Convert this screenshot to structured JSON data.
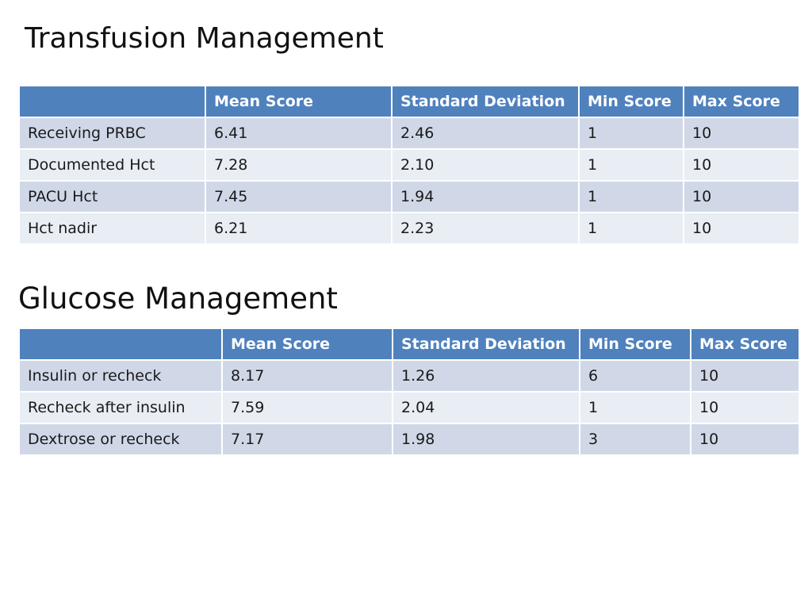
{
  "colors": {
    "header_bg": "#4f81bd",
    "header_text": "#ffffff",
    "row_band_1": "#d0d8e8",
    "row_band_2": "#e9edf4"
  },
  "transfusion": {
    "title": "Transfusion Management",
    "headers": [
      "",
      "Mean Score",
      "Standard Deviation",
      "Min Score",
      "Max Score"
    ],
    "rows": [
      [
        "Receiving PRBC",
        "6.41",
        "2.46",
        "1",
        "10"
      ],
      [
        "Documented Hct",
        "7.28",
        "2.10",
        "1",
        "10"
      ],
      [
        "PACU Hct",
        "7.45",
        "1.94",
        "1",
        "10"
      ],
      [
        "Hct nadir",
        "6.21",
        "2.23",
        "1",
        "10"
      ]
    ]
  },
  "glucose": {
    "title": "Glucose Management",
    "headers": [
      "",
      "Mean Score",
      "Standard Deviation",
      "Min Score",
      "Max Score"
    ],
    "rows": [
      [
        "Insulin or recheck",
        "8.17",
        "1.26",
        "6",
        "10"
      ],
      [
        "Recheck after insulin",
        "7.59",
        "2.04",
        "1",
        "10"
      ],
      [
        "Dextrose or recheck",
        "7.17",
        "1.98",
        "3",
        "10"
      ]
    ]
  }
}
